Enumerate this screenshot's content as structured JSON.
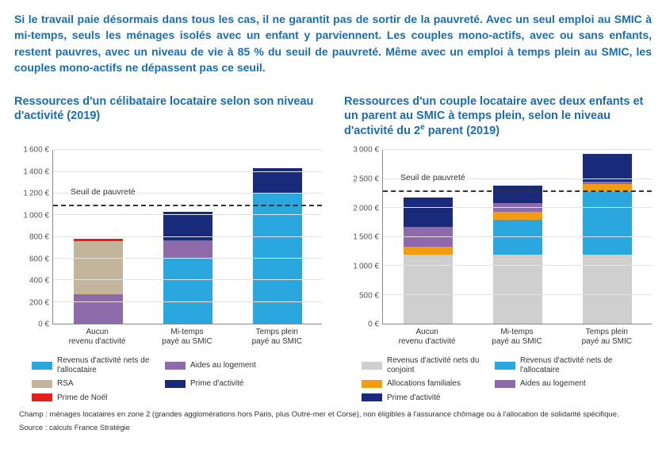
{
  "intro_text": "Si le travail paie désormais dans tous les cas, il ne garantit pas de sortir de la pauvreté. Avec un seul emploi au SMIC à mi-temps, seuls les ménages isolés avec un enfant y parviennent. Les couples mono-actifs, avec ou sans enfants, restent pauvres, avec un niveau de vie à 85 % du seuil de pauvreté. Même avec un emploi à temps plein au SMIC, les couples mono-actifs ne dépassent pas ce seuil.",
  "colors": {
    "revenus_activite": "#2aa7de",
    "aides_logement": "#8f6aab",
    "rsa": "#c2b59b",
    "prime_activite": "#1a2a7a",
    "prime_noel": "#e2201d",
    "revenus_conjoint": "#cfcfcf",
    "alloc_familiales": "#f39c12",
    "grid": "#e3e3e3",
    "axis": "#888888",
    "title": "#1a6cb3",
    "text": "#333333",
    "bg": "#ffffff"
  },
  "chart_left": {
    "title": "Ressources d'un célibataire locataire selon son niveau d'activité (2019)",
    "ymax": 1600,
    "ytick_step": 200,
    "categories": [
      "Aucun\nrevenu d'activité",
      "Mi-temps\npayé au SMIC",
      "Temps plein\npayé au SMIC"
    ],
    "poverty_line": 1080,
    "poverty_label": "Seuil de pauvreté",
    "series": [
      {
        "key": "revenus_activite",
        "label": "Revenus d'activité nets de l'allocataire"
      },
      {
        "key": "aides_logement",
        "label": "Aides au logement"
      },
      {
        "key": "rsa",
        "label": "RSA"
      },
      {
        "key": "prime_activite",
        "label": "Prime d'activité"
      },
      {
        "key": "prime_noel",
        "label": "Prime de Noël"
      }
    ],
    "data": [
      {
        "revenus_activite": 0,
        "aides_logement": 270,
        "rsa": 490,
        "prime_activite": 0,
        "prime_noel": 25
      },
      {
        "revenus_activite": 600,
        "aides_logement": 170,
        "rsa": 0,
        "prime_activite": 260,
        "prime_noel": 0
      },
      {
        "revenus_activite": 1200,
        "aides_logement": 0,
        "rsa": 0,
        "prime_activite": 235,
        "prime_noel": 0
      }
    ]
  },
  "chart_right": {
    "title_html": "Ressources d'un couple locataire avec deux enfants et un parent au SMIC à temps plein, selon le niveau d'activité du 2<sup>e</sup> parent (2019)",
    "ymax": 3000,
    "ytick_step": 500,
    "categories": [
      "Aucun\nrevenu d'activité",
      "Mi-temps\npayé au SMIC",
      "Temps plein\npayé au SMIC"
    ],
    "poverty_line": 2280,
    "poverty_label": "Seuil de pauvreté",
    "series": [
      {
        "key": "revenus_conjoint",
        "label": "Revenus d'activité nets du conjoint"
      },
      {
        "key": "revenus_activite",
        "label": "Revenus d'activité nets de l'allocataire"
      },
      {
        "key": "alloc_familiales",
        "label": "Allocations familiales"
      },
      {
        "key": "aides_logement",
        "label": "Aides au logement"
      },
      {
        "key": "prime_activite",
        "label": "Prime d'activité"
      }
    ],
    "data": [
      {
        "revenus_conjoint": 1200,
        "revenus_activite": 0,
        "alloc_familiales": 130,
        "aides_logement": 340,
        "prime_activite": 510
      },
      {
        "revenus_conjoint": 1200,
        "revenus_activite": 600,
        "alloc_familiales": 130,
        "aides_logement": 150,
        "prime_activite": 310
      },
      {
        "revenus_conjoint": 1200,
        "revenus_activite": 1080,
        "alloc_familiales": 130,
        "aides_logement": 50,
        "prime_activite": 470
      }
    ]
  },
  "footer": {
    "champ": "Champ : ménages locataires en zone 2 (grandes agglomérations hors Paris, plus Outre-mer et Corse), non éligibles à l'assurance chômage ou à l'allocation de solidarité spécifique.",
    "source": "Source : calculs France Stratégie"
  }
}
